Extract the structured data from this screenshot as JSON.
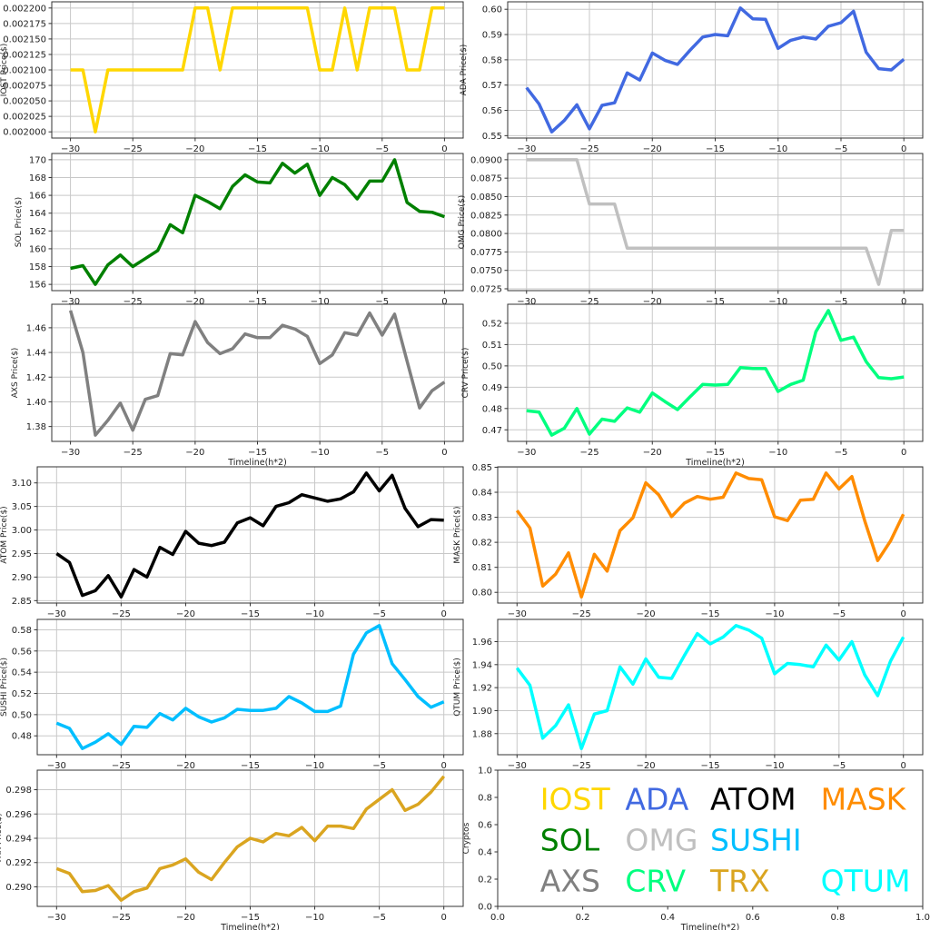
{
  "chart_data": [
    {
      "type": "line",
      "name": "IOST",
      "color": "#FFD700",
      "ylabel": "IOST Price($)",
      "xlabel": "",
      "x": [
        -30,
        -29,
        -28,
        -27,
        -26,
        -25,
        -24,
        -23,
        -22,
        -21,
        -20,
        -19,
        -18,
        -17,
        -16,
        -15,
        -14,
        -13,
        -12,
        -11,
        -10,
        -9,
        -8,
        -7,
        -6,
        -5,
        -4,
        -3,
        -2,
        -1,
        0
      ],
      "values": [
        0.0021,
        0.0021,
        0.002,
        0.0021,
        0.0021,
        0.0021,
        0.0021,
        0.0021,
        0.0021,
        0.0021,
        0.0022,
        0.0022,
        0.0021,
        0.0022,
        0.0022,
        0.0022,
        0.0022,
        0.0022,
        0.0022,
        0.0022,
        0.0021,
        0.0021,
        0.0022,
        0.0021,
        0.0022,
        0.0022,
        0.0022,
        0.0021,
        0.0021,
        0.0022,
        0.0022
      ],
      "yticks": [
        0.002,
        0.002025,
        0.00205,
        0.002075,
        0.0021,
        0.002125,
        0.00215,
        0.002175,
        0.0022
      ],
      "ytick_labels": [
        "0.002000",
        "0.002025",
        "0.002050",
        "0.002075",
        "0.002100",
        "0.002125",
        "0.002150",
        "0.002175",
        "0.002200"
      ]
    },
    {
      "type": "line",
      "name": "ADA",
      "color": "#4169E1",
      "ylabel": "ADA  Price($)",
      "xlabel": "",
      "values": [
        0.569,
        0.5625,
        0.5515,
        0.556,
        0.5622,
        0.5527,
        0.562,
        0.563,
        0.5748,
        0.572,
        0.5827,
        0.5798,
        0.5782,
        0.5838,
        0.589,
        0.59,
        0.5895,
        0.6005,
        0.5962,
        0.596,
        0.5845,
        0.5877,
        0.589,
        0.5882,
        0.5933,
        0.5947,
        0.5992,
        0.583,
        0.5765,
        0.576,
        0.5802
      ],
      "yticks": [
        0.55,
        0.56,
        0.57,
        0.58,
        0.59,
        0.6
      ],
      "ytick_labels": [
        "0.55",
        "0.56",
        "0.57",
        "0.58",
        "0.59",
        "0.60"
      ]
    },
    {
      "type": "line",
      "name": "SOL",
      "color": "#008000",
      "ylabel": "SOL Price($)",
      "xlabel": "",
      "values": [
        157.8,
        158.1,
        156.0,
        158.2,
        159.3,
        158.0,
        158.9,
        159.8,
        162.7,
        161.8,
        166.0,
        165.3,
        164.5,
        167.0,
        168.3,
        167.5,
        167.4,
        169.6,
        168.5,
        169.5,
        166.0,
        168.0,
        167.2,
        165.6,
        167.6,
        167.6,
        170.0,
        165.2,
        164.2,
        164.1,
        163.6
      ],
      "yticks": [
        156,
        158,
        160,
        162,
        164,
        166,
        168,
        170
      ],
      "ytick_labels": [
        "156",
        "158",
        "160",
        "162",
        "164",
        "166",
        "168",
        "170"
      ]
    },
    {
      "type": "line",
      "name": "OMG",
      "color": "#C0C0C0",
      "ylabel": "OMG  Price($)",
      "xlabel": "",
      "values": [
        0.09,
        0.09,
        0.09,
        0.09,
        0.09,
        0.084,
        0.084,
        0.084,
        0.078,
        0.078,
        0.078,
        0.078,
        0.078,
        0.078,
        0.078,
        0.078,
        0.078,
        0.078,
        0.078,
        0.078,
        0.078,
        0.078,
        0.078,
        0.078,
        0.078,
        0.078,
        0.078,
        0.078,
        0.0731,
        0.0804,
        0.0804
      ],
      "yticks": [
        0.0725,
        0.075,
        0.0775,
        0.08,
        0.0825,
        0.085,
        0.0875,
        0.09
      ],
      "ytick_labels": [
        "0.0725",
        "0.0750",
        "0.0775",
        "0.0800",
        "0.0825",
        "0.0850",
        "0.0875",
        "0.0900"
      ]
    },
    {
      "type": "line",
      "name": "AXS",
      "color": "#808080",
      "ylabel": "AXS Price($)",
      "xlabel": "Timeline(h*2)",
      "values": [
        1.474,
        1.44,
        1.373,
        1.385,
        1.399,
        1.377,
        1.402,
        1.405,
        1.439,
        1.438,
        1.465,
        1.448,
        1.439,
        1.443,
        1.455,
        1.452,
        1.452,
        1.462,
        1.459,
        1.453,
        1.431,
        1.438,
        1.456,
        1.454,
        1.472,
        1.454,
        1.471,
        1.433,
        1.395,
        1.409,
        1.416
      ],
      "yticks": [
        1.38,
        1.4,
        1.42,
        1.44,
        1.46
      ],
      "ytick_labels": [
        "1.38",
        "1.40",
        "1.42",
        "1.44",
        "1.46"
      ]
    },
    {
      "type": "line",
      "name": "CRV",
      "color": "#00FF7F",
      "ylabel": "CRV  Price($)",
      "xlabel": "Timeline(h*2)",
      "values": [
        0.479,
        0.4783,
        0.4675,
        0.4707,
        0.48,
        0.468,
        0.475,
        0.474,
        0.4803,
        0.4783,
        0.4873,
        0.4833,
        0.4795,
        0.4855,
        0.4913,
        0.491,
        0.4913,
        0.4992,
        0.4988,
        0.4988,
        0.488,
        0.4913,
        0.4933,
        0.516,
        0.526,
        0.512,
        0.5135,
        0.502,
        0.4945,
        0.494,
        0.4948
      ],
      "yticks": [
        0.47,
        0.48,
        0.49,
        0.5,
        0.51,
        0.52
      ],
      "ytick_labels": [
        "0.47",
        "0.48",
        "0.49",
        "0.50",
        "0.51",
        "0.52"
      ]
    },
    {
      "type": "line",
      "name": "ATOM",
      "color": "#000000",
      "ylabel": "ATOM  Price($)",
      "xlabel": "",
      "values": [
        2.95,
        2.931,
        2.861,
        2.871,
        2.903,
        2.858,
        2.916,
        2.9,
        2.963,
        2.948,
        2.997,
        2.972,
        2.967,
        2.974,
        3.015,
        3.026,
        3.009,
        3.05,
        3.058,
        3.075,
        3.068,
        3.061,
        3.066,
        3.081,
        3.121,
        3.083,
        3.116,
        3.046,
        3.007,
        3.022,
        3.021
      ],
      "yticks": [
        2.85,
        2.9,
        2.95,
        3.0,
        3.05,
        3.1
      ],
      "ytick_labels": [
        "2.85",
        "2.90",
        "2.95",
        "3.00",
        "3.05",
        "3.10"
      ]
    },
    {
      "type": "line",
      "name": "MASK",
      "color": "#FF8C00",
      "ylabel": "MASK  Price($)",
      "xlabel": "",
      "values": [
        0.8327,
        0.8257,
        0.8025,
        0.8073,
        0.8158,
        0.7982,
        0.8152,
        0.8085,
        0.8247,
        0.8298,
        0.8438,
        0.839,
        0.8303,
        0.8357,
        0.8383,
        0.8372,
        0.838,
        0.8477,
        0.8455,
        0.845,
        0.8302,
        0.8287,
        0.8368,
        0.8372,
        0.8477,
        0.8413,
        0.8463,
        0.8285,
        0.8127,
        0.8205,
        0.8312
      ],
      "yticks": [
        0.8,
        0.81,
        0.82,
        0.83,
        0.84,
        0.85
      ],
      "ytick_labels": [
        "0.80",
        "0.81",
        "0.82",
        "0.83",
        "0.84",
        "0.85"
      ]
    },
    {
      "type": "line",
      "name": "SUSHI",
      "color": "#00BFFF",
      "ylabel": "SUSHI  Price($)",
      "xlabel": "",
      "values": [
        0.492,
        0.487,
        0.468,
        0.474,
        0.482,
        0.472,
        0.489,
        0.488,
        0.501,
        0.495,
        0.506,
        0.498,
        0.493,
        0.497,
        0.505,
        0.504,
        0.504,
        0.506,
        0.517,
        0.511,
        0.503,
        0.503,
        0.508,
        0.557,
        0.577,
        0.584,
        0.548,
        0.533,
        0.517,
        0.507,
        0.512
      ],
      "yticks": [
        0.48,
        0.5,
        0.52,
        0.54,
        0.56,
        0.58
      ],
      "ytick_labels": [
        "0.48",
        "0.50",
        "0.52",
        "0.54",
        "0.56",
        "0.58"
      ]
    },
    {
      "type": "line",
      "name": "QTUM",
      "color": "#00FFFF",
      "ylabel": "QTUM Price($)",
      "xlabel": "",
      "values": [
        1.937,
        1.922,
        1.876,
        1.887,
        1.905,
        1.867,
        1.897,
        1.9,
        1.938,
        1.923,
        1.945,
        1.929,
        1.928,
        1.948,
        1.967,
        1.958,
        1.964,
        1.974,
        1.97,
        1.963,
        1.932,
        1.941,
        1.94,
        1.938,
        1.957,
        1.944,
        1.96,
        1.931,
        1.913,
        1.943,
        1.964
      ],
      "yticks": [
        1.88,
        1.9,
        1.92,
        1.94,
        1.96
      ],
      "ytick_labels": [
        "1.88",
        "1.90",
        "1.92",
        "1.94",
        "1.96"
      ]
    },
    {
      "type": "line",
      "name": "TRX",
      "color": "#DAA520",
      "ylabel": "TRX Price($)",
      "xlabel": "Timeline(h*2)",
      "values": [
        0.2915,
        0.2911,
        0.2896,
        0.2897,
        0.2901,
        0.2889,
        0.2896,
        0.2899,
        0.2915,
        0.2918,
        0.2923,
        0.2912,
        0.2906,
        0.292,
        0.2933,
        0.294,
        0.2937,
        0.2944,
        0.2942,
        0.2949,
        0.2938,
        0.295,
        0.295,
        0.2948,
        0.2964,
        0.2972,
        0.298,
        0.2963,
        0.2968,
        0.2978,
        0.2991
      ],
      "yticks": [
        0.29,
        0.292,
        0.294,
        0.296,
        0.298
      ],
      "ytick_labels": [
        "0.290",
        "0.292",
        "0.294",
        "0.296",
        "0.298"
      ]
    },
    {
      "type": "text-legend",
      "ylabel": "Cryptos",
      "xlabel": "Timeline(h*2)",
      "xlim": [
        0,
        1
      ],
      "ylim": [
        0,
        1
      ],
      "xticks": [
        0,
        0.2,
        0.4,
        0.6,
        0.8,
        1.0
      ],
      "xtick_labels": [
        "0.0",
        "0.2",
        "0.4",
        "0.6",
        "0.8",
        "1.0"
      ],
      "yticks": [
        0,
        0.2,
        0.4,
        0.6,
        0.8,
        1.0
      ],
      "ytick_labels": [
        "0.0",
        "0.2",
        "0.4",
        "0.6",
        "0.8",
        "1.0"
      ],
      "rows": [
        [
          {
            "label": "IOST",
            "color": "#FFD700"
          },
          {
            "label": "ADA",
            "color": "#4169E1"
          },
          {
            "label": "ATOM",
            "color": "#000000"
          },
          {
            "label": "MASK",
            "color": "#FF8C00"
          }
        ],
        [
          {
            "label": "SOL",
            "color": "#008000"
          },
          {
            "label": "OMG",
            "color": "#C0C0C0"
          },
          {
            "label": "SUSHI",
            "color": "#00BFFF"
          },
          null
        ],
        [
          {
            "label": "AXS",
            "color": "#808080"
          },
          {
            "label": "CRV",
            "color": "#00FF7F"
          },
          {
            "label": "TRX",
            "color": "#DAA520"
          },
          {
            "label": "QTUM",
            "color": "#00FFFF"
          }
        ]
      ]
    }
  ],
  "x_axis": {
    "xlim": [
      -30,
      0
    ],
    "xticks": [
      -30,
      -25,
      -20,
      -15,
      -10,
      -5,
      0
    ],
    "xtick_labels": [
      "−30",
      "−25",
      "−20",
      "−15",
      "−10",
      "−5",
      "0"
    ]
  }
}
